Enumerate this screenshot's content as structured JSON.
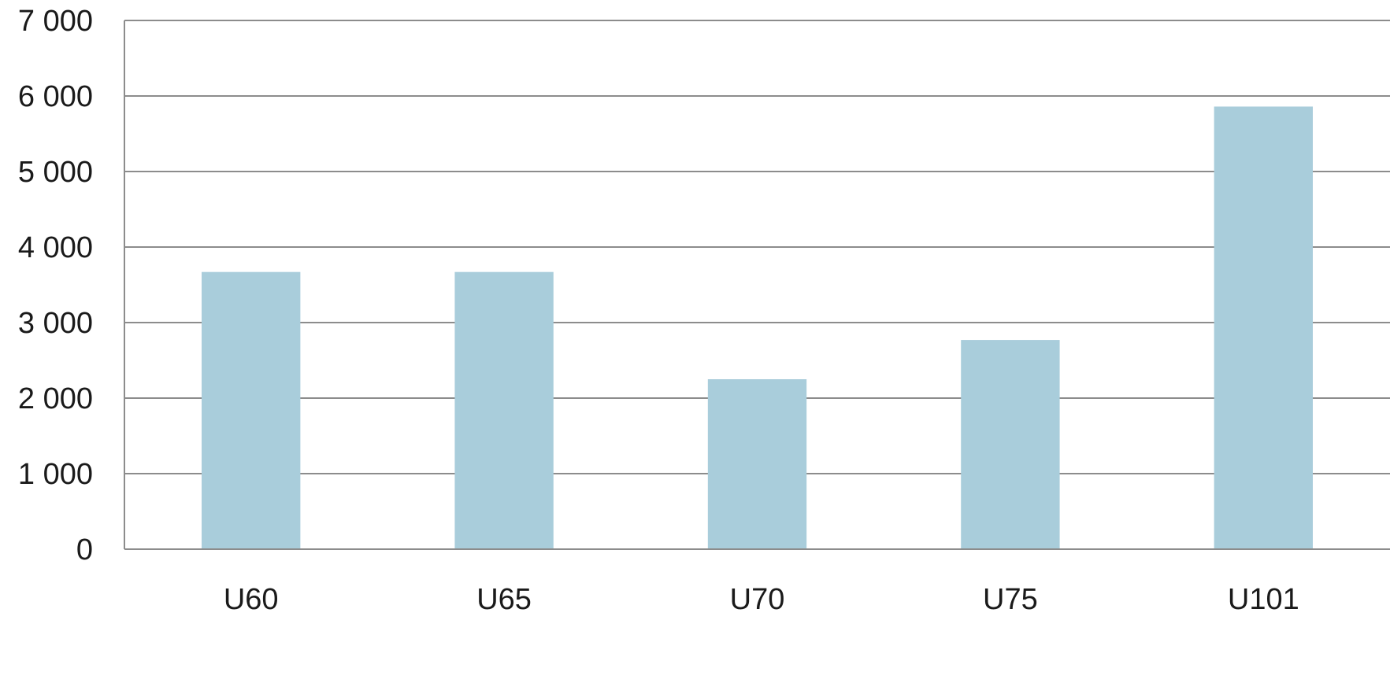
{
  "chart_data": {
    "type": "bar",
    "title": "",
    "xlabel": "",
    "ylabel": "",
    "categories": [
      "U60",
      "U65",
      "U70",
      "U75",
      "U101"
    ],
    "values": [
      3670,
      3670,
      2250,
      2770,
      5860
    ],
    "ylim": [
      0,
      7000
    ],
    "yticks": [
      0,
      1000,
      2000,
      3000,
      4000,
      5000,
      6000,
      7000
    ],
    "ytick_labels": [
      "0",
      "1 000",
      "2 000",
      "3 000",
      "4 000",
      "5 000",
      "6 000",
      "7 000"
    ],
    "grid": true,
    "legend": "none",
    "bar_color": "#a9cddb",
    "grid_color": "#8c8c8c"
  }
}
